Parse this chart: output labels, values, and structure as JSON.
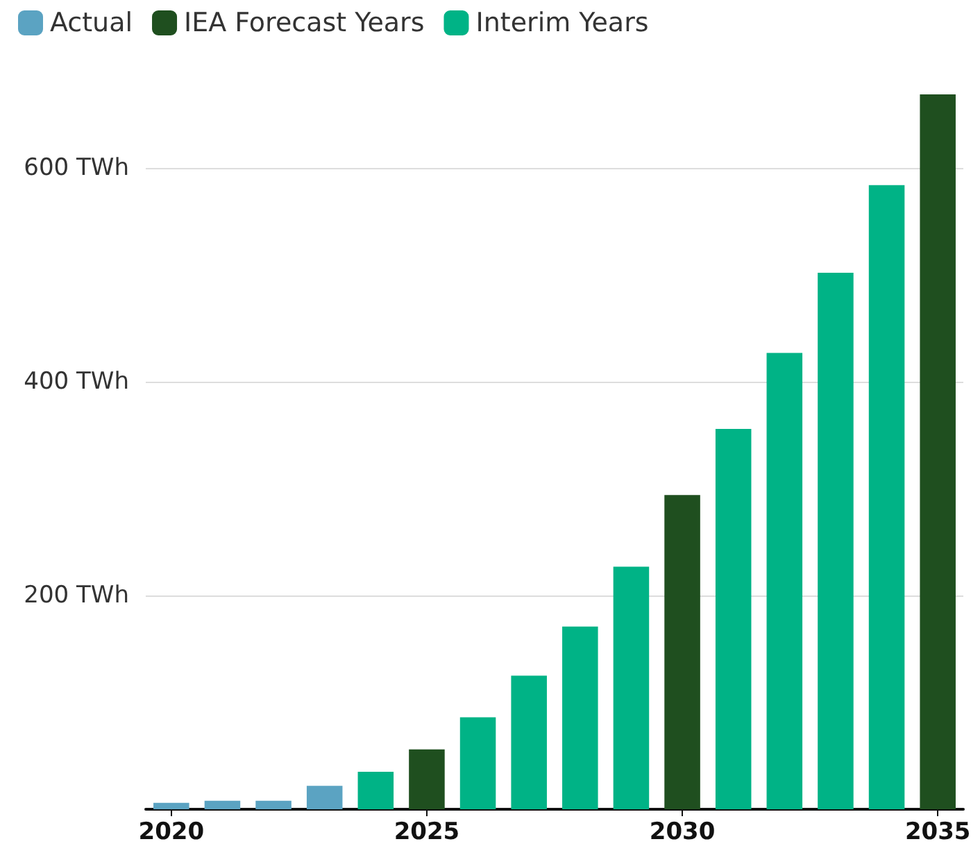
{
  "chart_data": {
    "type": "bar",
    "categories": [
      "2020",
      null,
      null,
      null,
      null,
      "2025",
      null,
      null,
      null,
      null,
      "2030",
      null,
      null,
      null,
      null,
      "2035"
    ],
    "series": [
      {
        "name": "Actual",
        "color": "#5ba3c2",
        "values": [
          6,
          8,
          8,
          22,
          null,
          null,
          null,
          null,
          null,
          null,
          null,
          null,
          null,
          null,
          null,
          null
        ]
      },
      {
        "name": "IEA Forecast Years",
        "color": "#1f4f1f",
        "values": [
          null,
          null,
          null,
          null,
          null,
          56,
          null,
          null,
          null,
          null,
          294,
          null,
          null,
          null,
          null,
          669
        ]
      },
      {
        "name": "Interim Years",
        "color": "#00b386",
        "values": [
          null,
          null,
          null,
          null,
          35,
          null,
          86,
          125,
          171,
          227,
          null,
          356,
          427,
          502,
          584,
          null
        ]
      }
    ],
    "ylim": [
      0,
      669
    ],
    "yticks": [
      {
        "value": 0,
        "label": null
      },
      {
        "value": 200,
        "label": "200 TWh"
      },
      {
        "value": 400,
        "label": "400 TWh"
      },
      {
        "value": 600,
        "label": "600 TWh"
      }
    ],
    "grid": "y",
    "legend": "top left"
  }
}
